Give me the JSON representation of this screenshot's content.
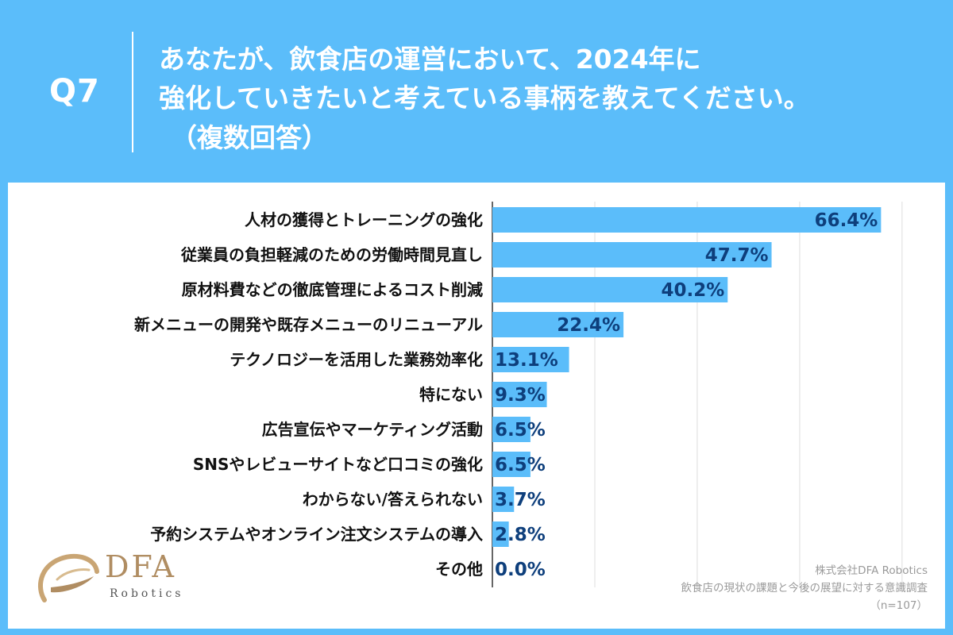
{
  "header": {
    "q_label": "Q7",
    "question_line_1": "あなたが、飲食店の運営において、2024年に",
    "question_line_2": "強化していきたいと考えている事柄を教えてください。",
    "question_line_3": "（複数回答）"
  },
  "source": {
    "company": "株式会社DFA Robotics",
    "survey": "飲食店の現状の課題と今後の展望に対する意識調査",
    "sample": "（n=107）"
  },
  "logo": {
    "brand": "DFA",
    "sub": "Robotics"
  },
  "colors": {
    "background": "#5bbdfa",
    "bar": "#5bbdfa",
    "value_text": "#0e3f7c"
  },
  "chart_data": {
    "type": "bar",
    "orientation": "horizontal",
    "categories": [
      "人材の獲得とトレーニングの強化",
      "従業員の負担軽減のための労働時間見直し",
      "原材料費などの徹底管理によるコスト削減",
      "新メニューの開発や既存メニューのリニューアル",
      "テクノロジーを活用した業務効率化",
      "特にない",
      "広告宣伝やマーケティング活動",
      "SNSやレビューサイトなど口コミの強化",
      "わからない/答えられない",
      "予約システムやオンライン注文システムの導入",
      "その他"
    ],
    "values": [
      66.4,
      47.7,
      40.2,
      22.4,
      13.1,
      9.3,
      6.5,
      6.5,
      3.7,
      2.8,
      0.0
    ],
    "value_labels": [
      "66.4%",
      "47.7%",
      "40.2%",
      "22.4%",
      "13.1%",
      "9.3%",
      "6.5%",
      "6.5%",
      "3.7%",
      "2.8%",
      "0.0%"
    ],
    "xlim": [
      0,
      70
    ],
    "grid": true
  }
}
